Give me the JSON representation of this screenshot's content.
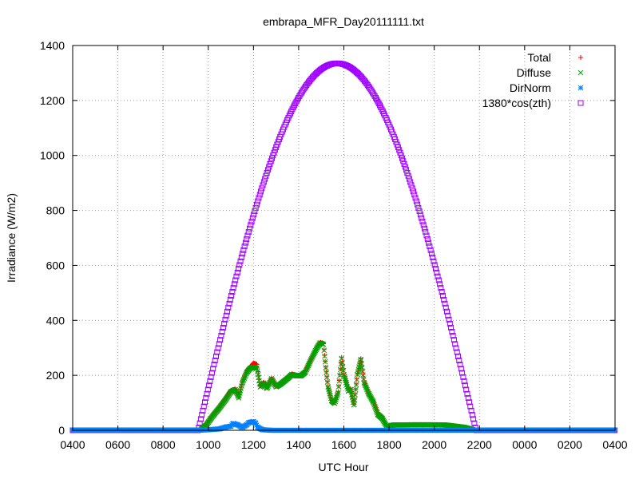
{
  "chart_data": {
    "type": "scatter",
    "title": "embrapa_MFR_Day20111111.txt",
    "xlabel": "UTC Hour",
    "ylabel": "Irradiance (W/m2)",
    "x_tick_labels": [
      "0400",
      "0600",
      "0800",
      "1000",
      "1200",
      "1400",
      "1600",
      "1800",
      "2000",
      "2200",
      "0000",
      "0200",
      "0400"
    ],
    "y_ticks": [
      0,
      200,
      400,
      600,
      800,
      1000,
      1200,
      1400
    ],
    "xlim_hours": [
      4,
      28
    ],
    "ylim": [
      0,
      1400
    ],
    "grid": true,
    "legend_position": "top-right",
    "series": [
      {
        "name": "Total",
        "color": "#ff0000",
        "marker": "plus",
        "points": [
          [
            9.7,
            5
          ],
          [
            9.9,
            20
          ],
          [
            10.2,
            55
          ],
          [
            10.5,
            85
          ],
          [
            10.8,
            120
          ],
          [
            11.0,
            145
          ],
          [
            11.2,
            150
          ],
          [
            11.35,
            120
          ],
          [
            11.5,
            175
          ],
          [
            11.7,
            215
          ],
          [
            11.85,
            230
          ],
          [
            12.0,
            245
          ],
          [
            12.15,
            240
          ],
          [
            12.3,
            160
          ],
          [
            12.45,
            175
          ],
          [
            12.6,
            155
          ],
          [
            12.8,
            190
          ],
          [
            13.0,
            160
          ],
          [
            13.2,
            170
          ],
          [
            13.5,
            190
          ],
          [
            13.7,
            205
          ],
          [
            13.9,
            200
          ],
          [
            14.1,
            200
          ],
          [
            14.3,
            215
          ],
          [
            14.55,
            260
          ],
          [
            14.8,
            300
          ],
          [
            14.95,
            320
          ],
          [
            15.1,
            315
          ],
          [
            15.2,
            230
          ],
          [
            15.3,
            160
          ],
          [
            15.45,
            110
          ],
          [
            15.6,
            100
          ],
          [
            15.75,
            140
          ],
          [
            15.9,
            265
          ],
          [
            16.0,
            205
          ],
          [
            16.1,
            175
          ],
          [
            16.2,
            145
          ],
          [
            16.3,
            150
          ],
          [
            16.45,
            95
          ],
          [
            16.6,
            205
          ],
          [
            16.75,
            260
          ],
          [
            16.9,
            175
          ],
          [
            17.1,
            135
          ],
          [
            17.3,
            105
          ],
          [
            17.5,
            60
          ],
          [
            17.7,
            45
          ],
          [
            17.9,
            15
          ],
          [
            18.2,
            20
          ],
          [
            18.6,
            20
          ],
          [
            19.0,
            20
          ],
          [
            19.5,
            20
          ],
          [
            20.0,
            20
          ],
          [
            20.5,
            20
          ],
          [
            21.0,
            15
          ],
          [
            21.3,
            12
          ],
          [
            21.5,
            8
          ],
          [
            21.7,
            2
          ]
        ]
      },
      {
        "name": "Diffuse",
        "color": "#00a000",
        "marker": "cross",
        "points": [
          [
            9.7,
            4
          ],
          [
            9.9,
            18
          ],
          [
            10.2,
            52
          ],
          [
            10.5,
            82
          ],
          [
            10.8,
            115
          ],
          [
            11.0,
            140
          ],
          [
            11.2,
            148
          ],
          [
            11.35,
            118
          ],
          [
            11.5,
            170
          ],
          [
            11.7,
            210
          ],
          [
            11.85,
            225
          ],
          [
            12.0,
            230
          ],
          [
            12.15,
            225
          ],
          [
            12.3,
            158
          ],
          [
            12.45,
            172
          ],
          [
            12.6,
            152
          ],
          [
            12.8,
            188
          ],
          [
            13.0,
            158
          ],
          [
            13.2,
            168
          ],
          [
            13.5,
            188
          ],
          [
            13.7,
            203
          ],
          [
            13.9,
            198
          ],
          [
            14.1,
            198
          ],
          [
            14.3,
            212
          ],
          [
            14.55,
            258
          ],
          [
            14.8,
            298
          ],
          [
            14.95,
            318
          ],
          [
            15.1,
            312
          ],
          [
            15.2,
            228
          ],
          [
            15.3,
            158
          ],
          [
            15.45,
            108
          ],
          [
            15.6,
            98
          ],
          [
            15.75,
            138
          ],
          [
            15.9,
            262
          ],
          [
            16.0,
            203
          ],
          [
            16.1,
            173
          ],
          [
            16.2,
            143
          ],
          [
            16.3,
            148
          ],
          [
            16.45,
            93
          ],
          [
            16.6,
            203
          ],
          [
            16.75,
            258
          ],
          [
            16.9,
            173
          ],
          [
            17.1,
            133
          ],
          [
            17.3,
            103
          ],
          [
            17.5,
            58
          ],
          [
            17.7,
            43
          ],
          [
            17.9,
            13
          ],
          [
            18.2,
            19
          ],
          [
            18.6,
            19
          ],
          [
            19.0,
            20
          ],
          [
            19.5,
            20
          ],
          [
            20.0,
            20
          ],
          [
            20.5,
            19
          ],
          [
            21.0,
            14
          ],
          [
            21.3,
            11
          ],
          [
            21.5,
            7
          ],
          [
            21.7,
            2
          ]
        ]
      },
      {
        "name": "DirNorm",
        "color": "#0080ff",
        "marker": "star",
        "points": [
          [
            4.0,
            0
          ],
          [
            9.5,
            0
          ],
          [
            10.0,
            2
          ],
          [
            10.5,
            5
          ],
          [
            10.8,
            12
          ],
          [
            11.0,
            15
          ],
          [
            11.1,
            25
          ],
          [
            11.3,
            20
          ],
          [
            11.5,
            10
          ],
          [
            11.7,
            20
          ],
          [
            11.8,
            28
          ],
          [
            11.9,
            30
          ],
          [
            12.0,
            32
          ],
          [
            12.1,
            25
          ],
          [
            12.2,
            10
          ],
          [
            12.4,
            2
          ],
          [
            12.8,
            0
          ],
          [
            14.0,
            0
          ],
          [
            16.0,
            0
          ],
          [
            18.0,
            0
          ],
          [
            20.0,
            0
          ],
          [
            22.0,
            0
          ],
          [
            24.0,
            0
          ],
          [
            26.0,
            0
          ],
          [
            28.0,
            0
          ]
        ]
      },
      {
        "name": "1380*cos(zth)",
        "color": "#a000ff",
        "marker": "square",
        "curve": {
          "rise_hour": 9.55,
          "noon_hour": 15.7,
          "set_hour": 21.85,
          "peak": 1335,
          "night_value": 0
        }
      }
    ]
  }
}
